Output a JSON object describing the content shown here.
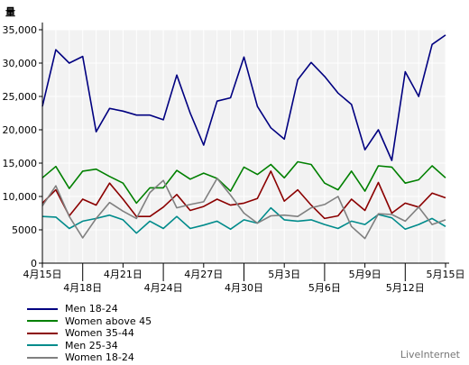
{
  "chart_data": {
    "type": "line",
    "ylabel": "量",
    "ylim": [
      0,
      35000
    ],
    "yticks": [
      0,
      5000,
      10000,
      15000,
      20000,
      25000,
      30000,
      35000
    ],
    "ytick_labels": [
      "0",
      "5000",
      "10,000",
      "15,000",
      "20,000",
      "25,000",
      "30,000",
      "35,000"
    ],
    "x": [
      "4月15日",
      "4月16日",
      "4月17日",
      "4月18日",
      "4月19日",
      "4月20日",
      "4月21日",
      "4月22日",
      "4月23日",
      "4月24日",
      "4月25日",
      "4月26日",
      "4月27日",
      "4月28日",
      "4月29日",
      "4月30日",
      "5月1日",
      "5月2日",
      "5月3日",
      "5月4日",
      "5月5日",
      "5月6日",
      "5月7日",
      "5月8日",
      "5月9日",
      "5月10日",
      "5月11日",
      "5月12日",
      "5月13日",
      "5月14日",
      "5月15日"
    ],
    "xtick_labels": [
      {
        "index": 0,
        "label": "4月15日",
        "row": 1
      },
      {
        "index": 3,
        "label": "4月18日",
        "row": 2
      },
      {
        "index": 6,
        "label": "4月21日",
        "row": 1
      },
      {
        "index": 9,
        "label": "4月24日",
        "row": 2
      },
      {
        "index": 12,
        "label": "4月27日",
        "row": 1
      },
      {
        "index": 15,
        "label": "4月30日",
        "row": 2
      },
      {
        "index": 18,
        "label": "5月3日",
        "row": 1
      },
      {
        "index": 21,
        "label": "5月6日",
        "row": 2
      },
      {
        "index": 24,
        "label": "5月9日",
        "row": 1
      },
      {
        "index": 27,
        "label": "5月12日",
        "row": 2
      },
      {
        "index": 30,
        "label": "5月15日",
        "row": 1
      }
    ],
    "grid": true,
    "legend_position": "bottom-left",
    "series": [
      {
        "name": "Men 18-24",
        "color": "#000080",
        "values": [
          23500,
          32000,
          30000,
          31000,
          19700,
          23200,
          22800,
          22200,
          22200,
          21500,
          28200,
          22500,
          17700,
          24300,
          24800,
          30900,
          23500,
          20300,
          18600,
          27500,
          30100,
          28000,
          25500,
          23800,
          17000,
          20000,
          15400,
          28700,
          25000,
          32800,
          34200
        ]
      },
      {
        "name": "Women above 45",
        "color": "#008000",
        "values": [
          12800,
          14500,
          11200,
          13800,
          14100,
          13000,
          12000,
          9000,
          11300,
          11300,
          13900,
          12600,
          13500,
          12700,
          10800,
          14400,
          13300,
          14800,
          12800,
          15200,
          14800,
          12000,
          11000,
          13800,
          10800,
          14600,
          14400,
          12000,
          12500,
          14600,
          12800
        ]
      },
      {
        "name": "Women 35-44",
        "color": "#8B0000",
        "values": [
          9000,
          11000,
          7100,
          9600,
          8700,
          12000,
          9600,
          7000,
          7000,
          8400,
          10300,
          7900,
          8500,
          9600,
          8700,
          9000,
          9700,
          13800,
          9300,
          11000,
          8700,
          6700,
          7100,
          9600,
          7900,
          12100,
          7500,
          9000,
          8400,
          10500,
          9800
        ]
      },
      {
        "name": "Men 25-34",
        "color": "#008B8B",
        "values": [
          7000,
          6900,
          5200,
          6300,
          6700,
          7200,
          6500,
          4500,
          6300,
          5200,
          7000,
          5200,
          5700,
          6300,
          5100,
          6500,
          6000,
          8300,
          6500,
          6300,
          6500,
          5800,
          5200,
          6300,
          5800,
          7300,
          6800,
          5100,
          5800,
          6700,
          5500
        ]
      },
      {
        "name": "Women 18-24",
        "color": "#808080",
        "values": [
          8600,
          11600,
          7000,
          3800,
          6700,
          9100,
          7800,
          6700,
          10600,
          12400,
          8300,
          8800,
          9200,
          12700,
          10200,
          7500,
          6000,
          7100,
          7200,
          7000,
          8300,
          8800,
          10000,
          5500,
          3700,
          7400,
          7300,
          6300,
          8400,
          5800,
          6500
        ]
      }
    ]
  },
  "watermark": "LiveInternet"
}
